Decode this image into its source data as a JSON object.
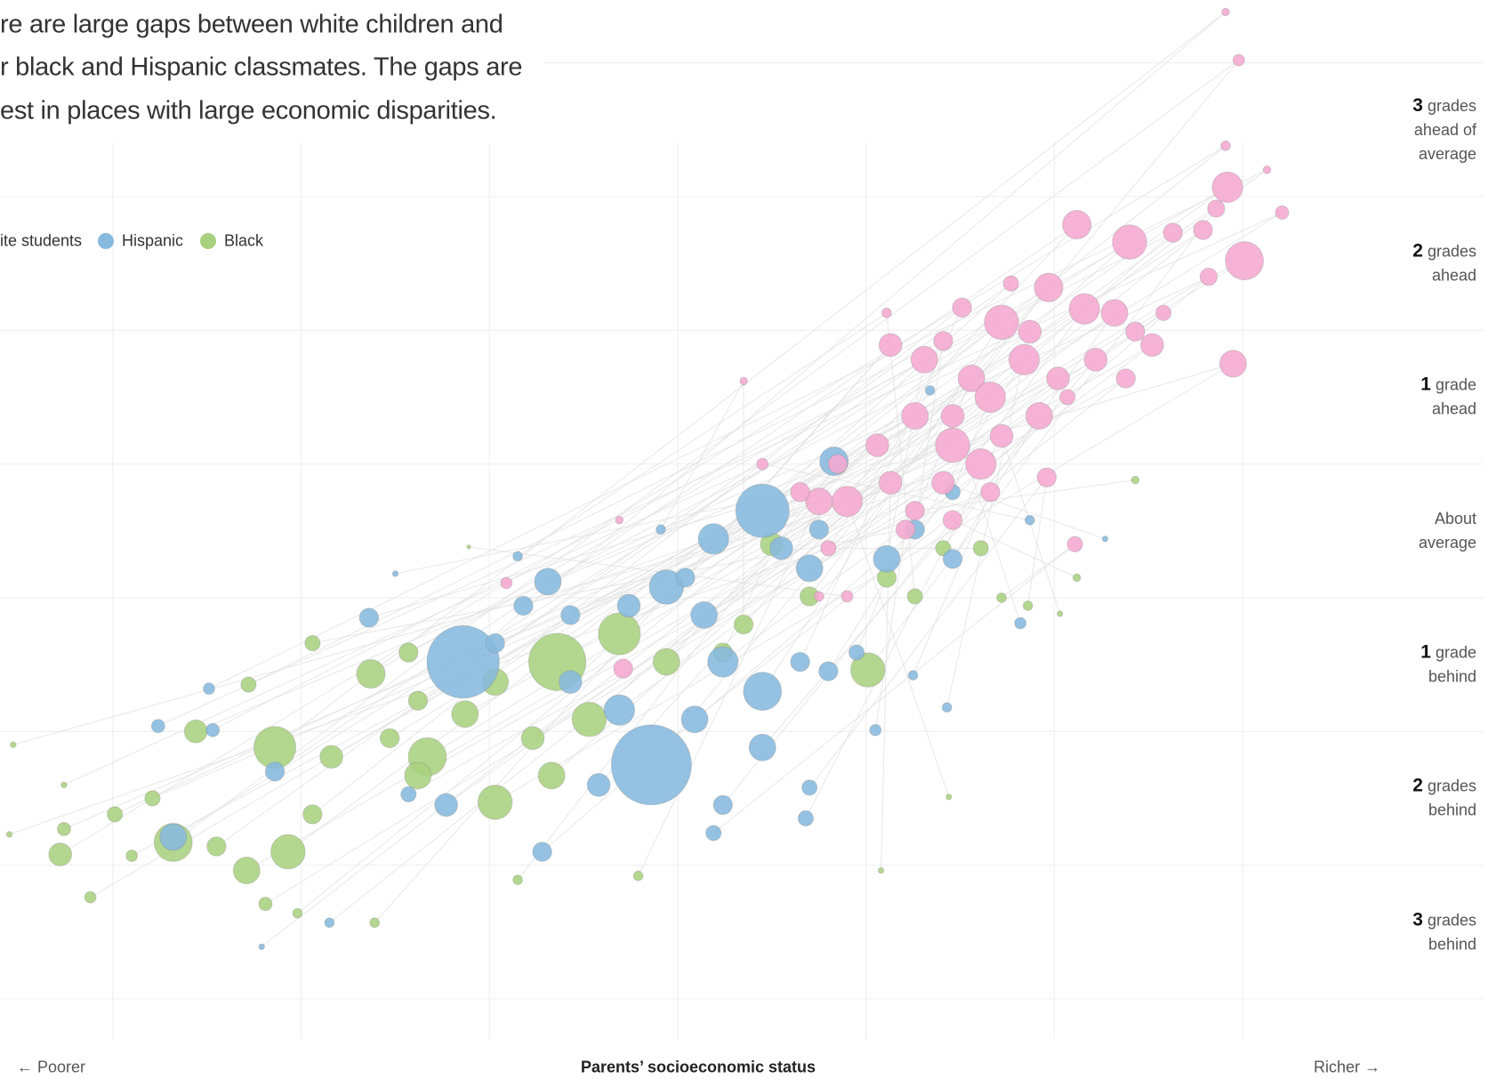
{
  "chart_data": {
    "type": "bubble",
    "title_lines": [
      "re are large gaps between white children and",
      "r black and Hispanic classmates. The gaps are",
      "est in places with large economic disparities."
    ],
    "x_label": "Parents’ socioeconomic status",
    "annotations": [
      "← Poorer",
      "Richer →"
    ],
    "legend_labels": [
      "ite students",
      "Hispanic",
      "Black"
    ],
    "xlim": [
      -3.6,
      3.6
    ],
    "ylim": [
      -3.8,
      3.97
    ],
    "xgrid": [
      -3,
      -2,
      -1,
      0,
      1,
      2,
      3
    ],
    "ygrid": [
      3.5,
      2.5,
      1.5,
      0.5,
      -0.5,
      -1.5,
      -2.5,
      -3.5
    ],
    "yticks": [
      {
        "value": 3,
        "label": "3 grades ahead of average"
      },
      {
        "value": 2,
        "label": "2 grades ahead"
      },
      {
        "value": 1,
        "label": "1 grade ahead"
      },
      {
        "value": 0,
        "label": "About average"
      },
      {
        "value": -1,
        "label": "1 grade behind"
      },
      {
        "value": -2,
        "label": "2 grades behind"
      },
      {
        "value": -3,
        "label": "3 grades behind"
      }
    ],
    "grid": true,
    "series": [
      {
        "name": "White students",
        "color": "#f5a9d0",
        "x": [
          2.91,
          2.98,
          2.91,
          2.92,
          3.01,
          2.95,
          3.21,
          3.13,
          2.12,
          2.4,
          2.63,
          2.79,
          2.86,
          2.82,
          1.97,
          2.16,
          2.32,
          2.52,
          1.72,
          1.51,
          1.84,
          1.56,
          1.31,
          1.41,
          1.66,
          1.92,
          2.02,
          1.46,
          1.26,
          1.61,
          1.13,
          1.06,
          0.85,
          0.75,
          0.9,
          1.13,
          1.26,
          1.46,
          1.72,
          1.96,
          2.11,
          2.22,
          2.38,
          2.58,
          1.77,
          1.46,
          1.87,
          1.21,
          0.8,
          0.65,
          0.35,
          1.11,
          0.45,
          1.66,
          1.41,
          0.9,
          0.75,
          -0.31,
          -0.91,
          -0.29,
          2.43,
          2.07
        ],
        "values": [
          3.88,
          3.52,
          2.88,
          2.57,
          2.02,
          1.25,
          2.38,
          2.7,
          2.29,
          2.16,
          2.23,
          2.25,
          2.41,
          1.9,
          1.82,
          1.66,
          1.63,
          1.39,
          1.56,
          1.67,
          1.28,
          1.14,
          1.28,
          1.42,
          1.0,
          0.86,
          1.14,
          0.64,
          0.86,
          0.5,
          1.39,
          0.64,
          0.5,
          0.22,
          0.22,
          0.36,
          0.15,
          0.08,
          0.71,
          0.4,
          -0.1,
          1.28,
          1.14,
          1.63,
          1.85,
          0.86,
          1.49,
          0.01,
          -0.13,
          0.29,
          1.12,
          1.63,
          0.5,
          0.29,
          0.36,
          -0.49,
          -0.49,
          0.08,
          -0.39,
          -1.03,
          1.49,
          1.0
        ],
        "sizes": [
          16,
          36,
          25,
          256,
          400,
          196,
          49,
          16,
          225,
          324,
          100,
          100,
          81,
          81,
          225,
          256,
          196,
          144,
          324,
          100,
          256,
          196,
          196,
          100,
          256,
          196,
          144,
          324,
          196,
          256,
          144,
          144,
          100,
          196,
          256,
          144,
          100,
          100,
          144,
          100,
          64,
          144,
          100,
          64,
          64,
          144,
          144,
          100,
          64,
          100,
          16,
          25,
          36,
          100,
          144,
          36,
          25,
          16,
          36,
          100,
          100,
          64
        ]
      },
      {
        "name": "Hispanic",
        "color": "#86b9de",
        "x": [
          -1.14,
          -0.14,
          0.45,
          0.83,
          -0.69,
          -1.64,
          -2.76,
          -2.49,
          -2.14,
          -2.68,
          -2.47,
          -1.85,
          -2.21,
          -0.72,
          -0.42,
          -0.06,
          0.14,
          0.24,
          0.45,
          0.65,
          0.8,
          0.95,
          1.11,
          1.26,
          1.46,
          1.46,
          0.7,
          0.55,
          0.75,
          0.19,
          0.04,
          -0.26,
          -0.57,
          -0.82,
          -0.97,
          -1.23,
          -1.43,
          0.24,
          0.68,
          0.7,
          0.19,
          0.45,
          0.09,
          -0.31,
          -0.57,
          1.82,
          1.43,
          1.05,
          1.34,
          -1.5,
          -0.09,
          -0.85,
          1.87,
          1.25,
          2.27
        ],
        "values": [
          -0.98,
          -1.75,
          0.15,
          0.52,
          -0.38,
          -0.65,
          -1.46,
          -1.18,
          -1.8,
          -2.29,
          -1.49,
          -2.93,
          -3.11,
          -2.4,
          -1.9,
          -0.42,
          -0.63,
          -0.98,
          -1.2,
          -0.98,
          -1.05,
          -0.91,
          -0.21,
          0.01,
          0.29,
          -0.21,
          -0.28,
          -0.13,
          0.01,
          -0.06,
          -0.35,
          -0.56,
          -0.63,
          -0.56,
          -0.84,
          -2.05,
          -1.97,
          -2.05,
          -2.15,
          -1.92,
          -2.26,
          -1.62,
          -1.41,
          -1.34,
          -1.13,
          -0.69,
          -1.32,
          -1.49,
          1.05,
          -0.32,
          0.01,
          -0.19,
          0.08,
          -1.08,
          -0.06
        ],
        "sizes": [
          1444,
          1764,
          784,
          225,
          196,
          100,
          49,
          36,
          100,
          196,
          49,
          25,
          9,
          100,
          144,
          324,
          196,
          256,
          400,
          100,
          100,
          64,
          196,
          100,
          64,
          100,
          196,
          144,
          100,
          256,
          100,
          144,
          100,
          100,
          100,
          144,
          64,
          100,
          64,
          64,
          64,
          196,
          196,
          256,
          144,
          36,
          25,
          36,
          25,
          9,
          25,
          25,
          25,
          25,
          9
        ]
      },
      {
        "name": "Black",
        "color": "#a8d17f",
        "x": [
          -2.14,
          -2.68,
          -3.28,
          -1.63,
          -1.33,
          -0.97,
          -0.64,
          -0.31,
          -0.06,
          -0.47,
          -0.67,
          -0.97,
          1.01,
          0.5,
          0.7,
          1.11,
          1.41,
          -2.29,
          -2.07,
          -1.94,
          -1.84,
          -1.53,
          -1.38,
          -2.28,
          -2.56,
          -2.79,
          -2.99,
          -3.26,
          -3.12,
          -2.19,
          -1.61,
          -2.02,
          -0.85,
          -0.21,
          1.44,
          1.08,
          2.43,
          2.12,
          2.03,
          1.86,
          1.72,
          -1.13,
          -1.38,
          -0.77,
          -2.45,
          -2.9,
          -1.43,
          -1.94,
          1.61,
          0.24,
          0.35,
          1.26,
          -3.26,
          -3.55,
          -3.53,
          -1.11
        ],
        "values": [
          -1.62,
          -2.33,
          -2.42,
          -1.07,
          -1.69,
          -2.03,
          -0.98,
          -0.77,
          -0.98,
          -1.41,
          -1.83,
          -1.13,
          -1.04,
          -0.1,
          -0.49,
          -0.35,
          -0.13,
          -2.54,
          -2.4,
          -2.12,
          -1.69,
          -1.55,
          -1.27,
          -1.15,
          -1.5,
          -2.0,
          -2.12,
          -2.23,
          -2.74,
          -2.79,
          -2.93,
          -2.86,
          -2.61,
          -2.58,
          -1.99,
          -2.54,
          0.38,
          -0.35,
          -0.62,
          -0.56,
          -0.5,
          -1.37,
          -1.83,
          -1.55,
          -2.36,
          -2.43,
          -0.91,
          -0.84,
          -0.13,
          -0.91,
          -0.7,
          -0.49,
          -1.9,
          -2.27,
          -1.6,
          -0.12
        ],
        "sizes": [
          484,
          400,
          144,
          225,
          400,
          324,
          900,
          484,
          196,
          324,
          196,
          196,
          324,
          144,
          100,
          100,
          64,
          196,
          324,
          100,
          144,
          100,
          100,
          64,
          144,
          64,
          64,
          49,
          36,
          49,
          25,
          25,
          25,
          25,
          9,
          9,
          16,
          16,
          9,
          25,
          25,
          196,
          196,
          144,
          100,
          36,
          100,
          64,
          64,
          100,
          100,
          64,
          9,
          9,
          9,
          4
        ]
      }
    ]
  }
}
